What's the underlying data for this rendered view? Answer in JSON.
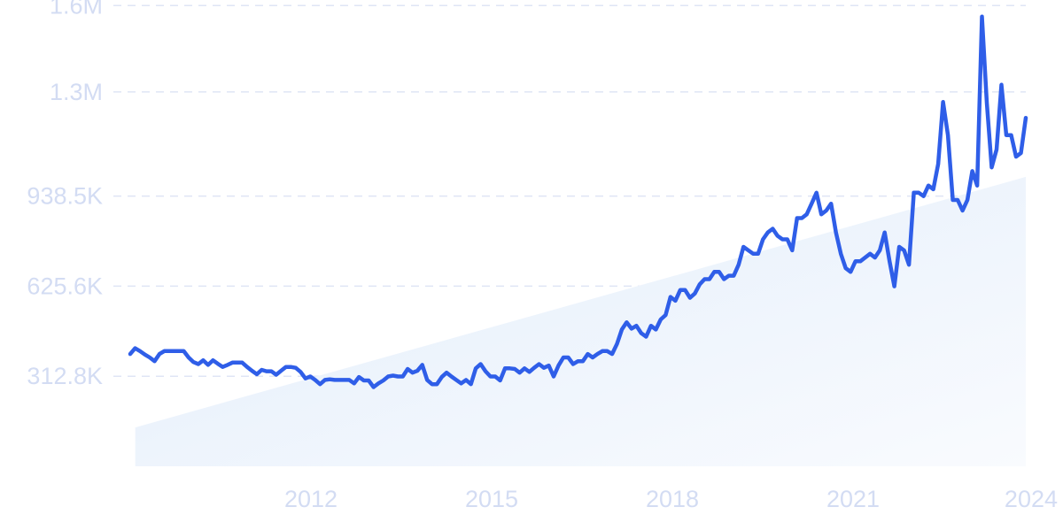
{
  "chart_data": {
    "type": "line",
    "title": "",
    "xlabel": "",
    "ylabel": "",
    "x_ticks": [
      "2012",
      "2015",
      "2018",
      "2021",
      "2024"
    ],
    "y_ticks": [
      "312.8K",
      "625.6K",
      "938.5K",
      "1.3M",
      "1.6M"
    ],
    "ylim": [
      0,
      1564000
    ],
    "xlim": [
      "2009-02",
      "2024-02"
    ],
    "grid": "horizontal dashed",
    "colors": {
      "line": "#2f5ee8",
      "trend_fill": "#e6effb",
      "grid": "#dfe5f5",
      "tick_text": "#d3dcf3"
    },
    "trend": {
      "start": {
        "x": "2009-02",
        "y": 135000
      },
      "end": {
        "x": "2024-02",
        "y": 1005000
      }
    },
    "series": [
      {
        "points": [
          [
            "2009-02",
            390000
          ],
          [
            "2009-03",
            410000
          ],
          [
            "2009-04",
            400000
          ],
          [
            "2009-05",
            388000
          ],
          [
            "2009-06",
            378000
          ],
          [
            "2009-07",
            365000
          ],
          [
            "2009-08",
            390000
          ],
          [
            "2009-09",
            400000
          ],
          [
            "2009-10",
            400000
          ],
          [
            "2009-11",
            400000
          ],
          [
            "2009-12",
            400000
          ],
          [
            "2010-01",
            400000
          ],
          [
            "2010-02",
            378000
          ],
          [
            "2010-03",
            362000
          ],
          [
            "2010-04",
            355000
          ],
          [
            "2010-05",
            368000
          ],
          [
            "2010-06",
            352000
          ],
          [
            "2010-07",
            368000
          ],
          [
            "2010-08",
            356000
          ],
          [
            "2010-09",
            345000
          ],
          [
            "2010-10",
            352000
          ],
          [
            "2010-11",
            360000
          ],
          [
            "2010-12",
            360000
          ],
          [
            "2011-01",
            360000
          ],
          [
            "2011-02",
            345000
          ],
          [
            "2011-03",
            332000
          ],
          [
            "2011-04",
            320000
          ],
          [
            "2011-05",
            335000
          ],
          [
            "2011-06",
            330000
          ],
          [
            "2011-07",
            330000
          ],
          [
            "2011-08",
            318000
          ],
          [
            "2011-09",
            332000
          ],
          [
            "2011-10",
            345000
          ],
          [
            "2011-11",
            345000
          ],
          [
            "2011-12",
            342000
          ],
          [
            "2012-01",
            328000
          ],
          [
            "2012-02",
            305000
          ],
          [
            "2012-03",
            312000
          ],
          [
            "2012-04",
            300000
          ],
          [
            "2012-05",
            285000
          ],
          [
            "2012-06",
            300000
          ],
          [
            "2012-07",
            302000
          ],
          [
            "2012-08",
            300000
          ],
          [
            "2012-09",
            300000
          ],
          [
            "2012-10",
            300000
          ],
          [
            "2012-11",
            300000
          ],
          [
            "2012-12",
            288000
          ],
          [
            "2013-01",
            310000
          ],
          [
            "2013-02",
            298000
          ],
          [
            "2013-03",
            298000
          ],
          [
            "2013-04",
            275000
          ],
          [
            "2013-05",
            288000
          ],
          [
            "2013-06",
            298000
          ],
          [
            "2013-07",
            312000
          ],
          [
            "2013-08",
            315000
          ],
          [
            "2013-09",
            312000
          ],
          [
            "2013-10",
            312000
          ],
          [
            "2013-11",
            338000
          ],
          [
            "2013-12",
            325000
          ],
          [
            "2014-01",
            332000
          ],
          [
            "2014-02",
            352000
          ],
          [
            "2014-03",
            300000
          ],
          [
            "2014-04",
            285000
          ],
          [
            "2014-05",
            285000
          ],
          [
            "2014-06",
            310000
          ],
          [
            "2014-07",
            325000
          ],
          [
            "2014-08",
            312000
          ],
          [
            "2014-09",
            300000
          ],
          [
            "2014-10",
            288000
          ],
          [
            "2014-11",
            300000
          ],
          [
            "2014-12",
            285000
          ],
          [
            "2015-01",
            340000
          ],
          [
            "2015-02",
            355000
          ],
          [
            "2015-03",
            330000
          ],
          [
            "2015-04",
            312000
          ],
          [
            "2015-05",
            312000
          ],
          [
            "2015-06",
            298000
          ],
          [
            "2015-07",
            340000
          ],
          [
            "2015-08",
            340000
          ],
          [
            "2015-09",
            338000
          ],
          [
            "2015-10",
            325000
          ],
          [
            "2015-11",
            340000
          ],
          [
            "2015-12",
            328000
          ],
          [
            "2016-01",
            342000
          ],
          [
            "2016-02",
            355000
          ],
          [
            "2016-03",
            342000
          ],
          [
            "2016-04",
            350000
          ],
          [
            "2016-05",
            312000
          ],
          [
            "2016-06",
            350000
          ],
          [
            "2016-07",
            378000
          ],
          [
            "2016-08",
            378000
          ],
          [
            "2016-09",
            355000
          ],
          [
            "2016-10",
            365000
          ],
          [
            "2016-11",
            365000
          ],
          [
            "2016-12",
            390000
          ],
          [
            "2017-01",
            378000
          ],
          [
            "2017-02",
            390000
          ],
          [
            "2017-03",
            400000
          ],
          [
            "2017-04",
            400000
          ],
          [
            "2017-05",
            390000
          ],
          [
            "2017-06",
            425000
          ],
          [
            "2017-07",
            475000
          ],
          [
            "2017-08",
            500000
          ],
          [
            "2017-09",
            478000
          ],
          [
            "2017-10",
            488000
          ],
          [
            "2017-11",
            462000
          ],
          [
            "2017-12",
            450000
          ],
          [
            "2018-01",
            488000
          ],
          [
            "2018-02",
            475000
          ],
          [
            "2018-03",
            510000
          ],
          [
            "2018-04",
            525000
          ],
          [
            "2018-05",
            588000
          ],
          [
            "2018-06",
            575000
          ],
          [
            "2018-07",
            612000
          ],
          [
            "2018-08",
            612000
          ],
          [
            "2018-09",
            585000
          ],
          [
            "2018-10",
            600000
          ],
          [
            "2018-11",
            632000
          ],
          [
            "2018-12",
            650000
          ],
          [
            "2019-01",
            650000
          ],
          [
            "2019-02",
            675000
          ],
          [
            "2019-03",
            675000
          ],
          [
            "2019-04",
            650000
          ],
          [
            "2019-05",
            662000
          ],
          [
            "2019-06",
            662000
          ],
          [
            "2019-07",
            700000
          ],
          [
            "2019-08",
            762000
          ],
          [
            "2019-09",
            750000
          ],
          [
            "2019-10",
            738000
          ],
          [
            "2019-11",
            738000
          ],
          [
            "2019-12",
            788000
          ],
          [
            "2020-01",
            812000
          ],
          [
            "2020-02",
            825000
          ],
          [
            "2020-03",
            800000
          ],
          [
            "2020-04",
            788000
          ],
          [
            "2020-05",
            788000
          ],
          [
            "2020-06",
            750000
          ],
          [
            "2020-07",
            862000
          ],
          [
            "2020-08",
            862000
          ],
          [
            "2020-09",
            875000
          ],
          [
            "2020-10",
            912000
          ],
          [
            "2020-11",
            950000
          ],
          [
            "2020-12",
            875000
          ],
          [
            "2021-01",
            888000
          ],
          [
            "2021-02",
            912000
          ],
          [
            "2021-03",
            812000
          ],
          [
            "2021-04",
            738000
          ],
          [
            "2021-05",
            688000
          ],
          [
            "2021-06",
            675000
          ],
          [
            "2021-07",
            712000
          ],
          [
            "2021-08",
            712000
          ],
          [
            "2021-09",
            725000
          ],
          [
            "2021-10",
            738000
          ],
          [
            "2021-11",
            725000
          ],
          [
            "2021-12",
            750000
          ],
          [
            "2022-01",
            812000
          ],
          [
            "2022-02",
            712000
          ],
          [
            "2022-03",
            625000
          ],
          [
            "2022-04",
            762000
          ],
          [
            "2022-05",
            750000
          ],
          [
            "2022-06",
            700000
          ],
          [
            "2022-07",
            950000
          ],
          [
            "2022-08",
            950000
          ],
          [
            "2022-09",
            938000
          ],
          [
            "2022-10",
            975000
          ],
          [
            "2022-11",
            962000
          ],
          [
            "2022-12",
            1050000
          ],
          [
            "2023-01",
            1265000
          ],
          [
            "2023-02",
            1150000
          ],
          [
            "2023-03",
            925000
          ],
          [
            "2023-04",
            925000
          ],
          [
            "2023-05",
            888000
          ],
          [
            "2023-06",
            925000
          ],
          [
            "2023-07",
            1025000
          ],
          [
            "2023-08",
            975000
          ],
          [
            "2023-09",
            1562000
          ],
          [
            "2023-10",
            1262000
          ],
          [
            "2023-11",
            1038000
          ],
          [
            "2023-12",
            1100000
          ],
          [
            "2024-01",
            1325000
          ],
          [
            "2024-02",
            1150000
          ],
          [
            "2024-03",
            1150000
          ],
          [
            "2024-04",
            1075000
          ],
          [
            "2024-05",
            1088000
          ],
          [
            "2024-06",
            1210000
          ]
        ]
      }
    ]
  }
}
